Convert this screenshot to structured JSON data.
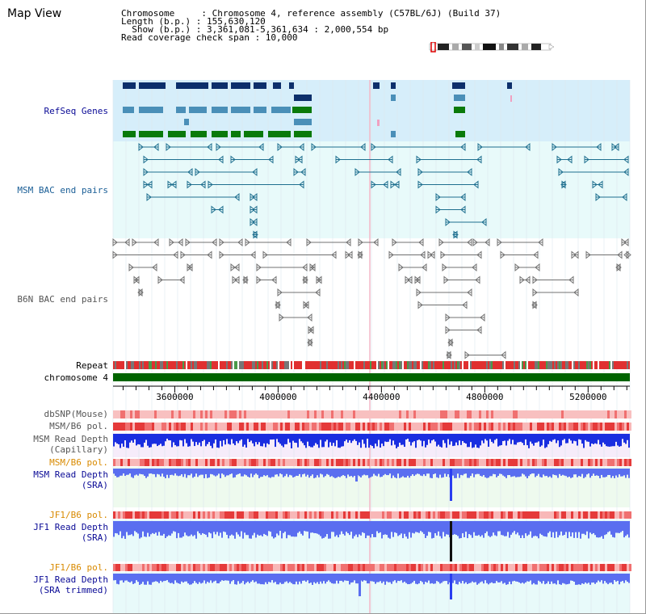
{
  "header": {
    "title": "Map View",
    "chromosome_label": "Chromosome     : Chromosome 4, reference assembly (C57BL/6J) (Build 37)",
    "length_label": "Length (b.p.) : 155,630,120",
    "show_label": "  Show (b.p.) : 3,361,081-5,361,634 : 2,000,554 bp",
    "coverage_label": "Read coverage check span : 10,000"
  },
  "axis": {
    "start": 3361081,
    "end": 5361634,
    "ticks": [
      "3600000",
      "4000000",
      "4400000",
      "4800000",
      "5200000"
    ]
  },
  "tracks": {
    "refseq": "RefSeq Genes",
    "msm_bac": "MSM BAC end pairs",
    "b6n_bac": "B6N BAC end pairs",
    "repeat": "Repeat",
    "chromosome": "chromosome 4",
    "dbsnp": "dbSNP(Mouse)",
    "msm_pol_1": "MSM/B6 pol.",
    "msm_depth_cap_1": "MSM Read Depth",
    "msm_depth_cap_2": "(Capillary)",
    "msm_pol_2": "MSM/B6 pol.",
    "msm_depth_sra_1": "MSM Read Depth",
    "msm_depth_sra_2": "(SRA)",
    "jf1_pol_1": "JF1/B6 pol.",
    "jf1_depth_sra_1": "JF1 Read Depth",
    "jf1_depth_sra_2": "(SRA)",
    "jf1_pol_2": "JF1/B6 pol.",
    "jf1_depth_trim_1": "JF1 Read Depth",
    "jf1_depth_trim_2": "(SRA trimmed)"
  },
  "colors": {
    "refseq_bg": "#d6eefa",
    "bac_bg": "#e8fafa",
    "gene_dark": "#0d2f6b",
    "gene_mid": "#4a8fb8",
    "gene_green": "#0a7a0a",
    "msm_bac": "#1e6f8f",
    "b6n_bac": "#707070",
    "chrom_green": "#006400",
    "depth_blue": "#1a2ee0",
    "depth_sra": "#5a6ef0",
    "pol_red": "#f08080"
  }
}
